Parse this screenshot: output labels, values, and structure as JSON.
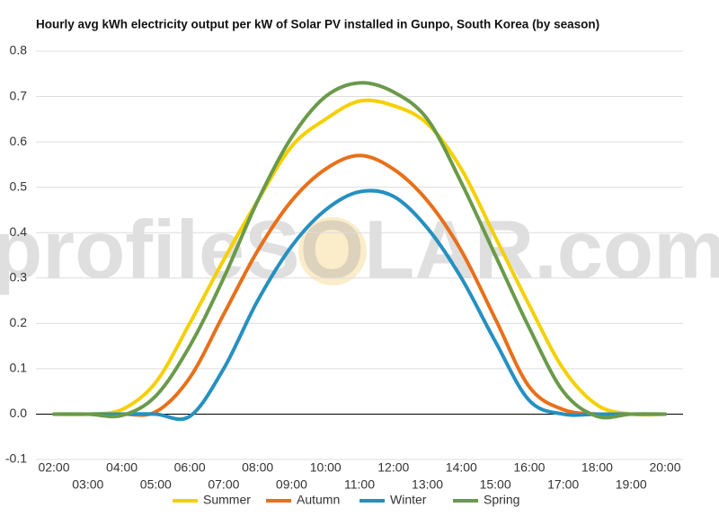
{
  "chart_data": {
    "type": "line",
    "title": "Hourly avg kWh electricity output per kW of Solar PV installed in Gunpo, South Korea (by season)",
    "watermark": "profileSOLAR.com",
    "categories": [
      "02:00",
      "03:00",
      "04:00",
      "05:00",
      "06:00",
      "07:00",
      "08:00",
      "09:00",
      "10:00",
      "11:00",
      "12:00",
      "13:00",
      "14:00",
      "15:00",
      "16:00",
      "17:00",
      "18:00",
      "19:00",
      "20:00"
    ],
    "ylim": [
      -0.1,
      0.8
    ],
    "yticks": [
      -0.1,
      {
        "value": 0,
        "label": "0.0"
      },
      0.1,
      0.2,
      0.3,
      0.4,
      0.5,
      0.6,
      0.7,
      0.8
    ],
    "grid": true,
    "legend": "bottom",
    "series": [
      {
        "name": "Summer",
        "color": "#f5d000",
        "values": [
          0,
          0,
          0.01,
          0.07,
          0.2,
          0.34,
          0.47,
          0.59,
          0.65,
          0.69,
          0.68,
          0.64,
          0.54,
          0.39,
          0.24,
          0.1,
          0.02,
          0,
          0
        ]
      },
      {
        "name": "Autumn",
        "color": "#e8701a",
        "values": [
          0,
          0,
          0,
          0.005,
          0.08,
          0.22,
          0.36,
          0.47,
          0.54,
          0.57,
          0.54,
          0.47,
          0.36,
          0.21,
          0.06,
          0.01,
          0,
          0,
          0
        ]
      },
      {
        "name": "Winter",
        "color": "#2690c0",
        "values": [
          0,
          0,
          0,
          0,
          -0.005,
          0.1,
          0.25,
          0.37,
          0.45,
          0.49,
          0.48,
          0.41,
          0.3,
          0.16,
          0.03,
          0,
          0,
          0,
          0
        ]
      },
      {
        "name": "Spring",
        "color": "#6a9a4a",
        "values": [
          0,
          0,
          -0.003,
          0.04,
          0.15,
          0.3,
          0.47,
          0.61,
          0.7,
          0.73,
          0.71,
          0.65,
          0.51,
          0.35,
          0.19,
          0.05,
          -0.005,
          0,
          0
        ]
      }
    ]
  }
}
